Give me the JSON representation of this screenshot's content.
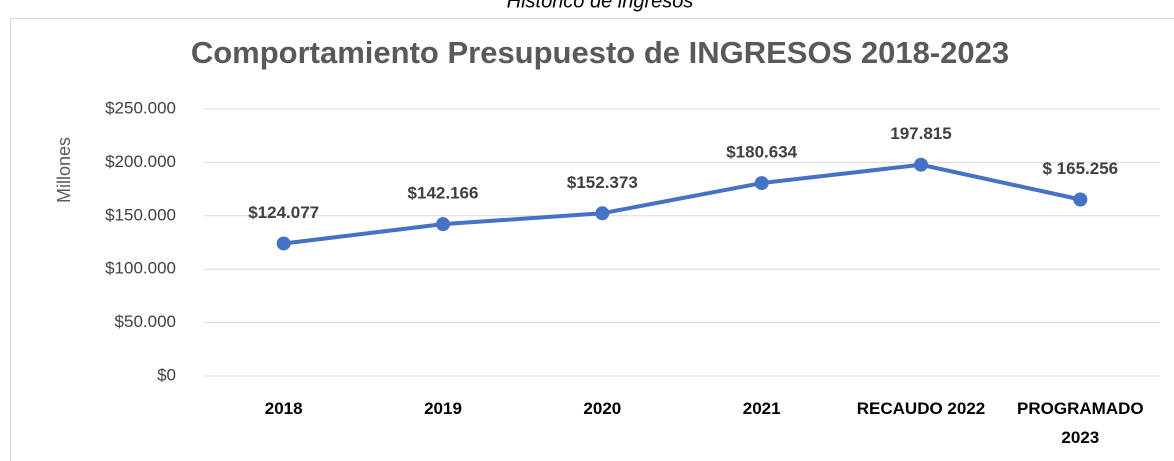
{
  "caption": "Histórico de ingresos",
  "chart_data": {
    "type": "line",
    "title": "Comportamiento Presupuesto de INGRESOS 2018-2023",
    "ylabel": "Millones",
    "categories": [
      "2018",
      "2019",
      "2020",
      "2021",
      "RECAUDO 2022",
      "PROGRAMADO 2023"
    ],
    "values": [
      124077,
      142166,
      152373,
      180634,
      197815,
      165256
    ],
    "value_labels": [
      "$124.077",
      "$142.166",
      "$152.373",
      "$180.634",
      "197.815",
      "$ 165.256"
    ],
    "color": "#4472c4",
    "ylim": [
      0,
      250000
    ],
    "yticks": [
      {
        "value": 0,
        "label": "$0"
      },
      {
        "value": 50000,
        "label": "$50.000"
      },
      {
        "value": 100000,
        "label": "$100.000"
      },
      {
        "value": 150000,
        "label": "$150.000"
      },
      {
        "value": 200000,
        "label": "$200.000"
      },
      {
        "value": 250000,
        "label": "$250.000"
      }
    ],
    "grid": true
  }
}
